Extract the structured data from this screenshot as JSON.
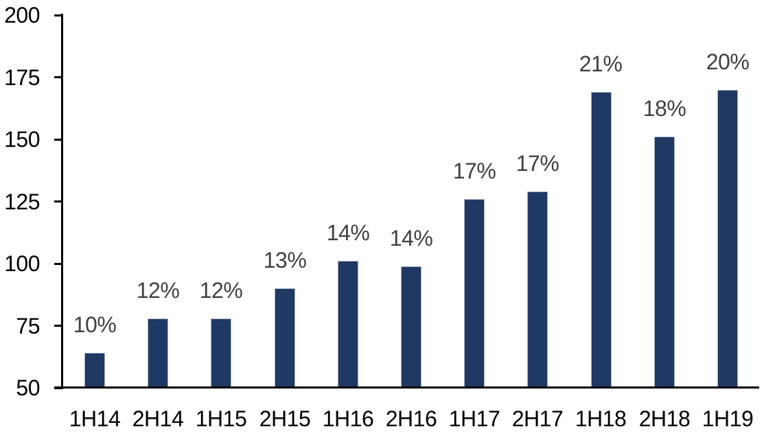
{
  "chart_data": {
    "type": "bar",
    "title": "",
    "xlabel": "",
    "ylabel": "",
    "categories": [
      "1H14",
      "2H14",
      "1H15",
      "2H15",
      "1H16",
      "2H16",
      "1H17",
      "2H17",
      "1H18",
      "2H18",
      "1H19"
    ],
    "values": [
      64,
      78,
      78,
      90,
      101,
      99,
      126,
      129,
      169,
      151,
      170
    ],
    "bar_labels": [
      "10%",
      "12%",
      "12%",
      "13%",
      "14%",
      "14%",
      "17%",
      "17%",
      "21%",
      "18%",
      "20%"
    ],
    "ylim": [
      50,
      200
    ],
    "ytick_step": 25,
    "yticks": [
      200,
      175,
      150,
      125,
      100,
      75,
      50
    ],
    "grid": false,
    "legend": "none",
    "colors": {
      "bar_fill": "#1f3864",
      "bar_border": "#a9b2c6",
      "data_label": "#404040",
      "axis": "#000000",
      "background": "#ffffff"
    }
  }
}
